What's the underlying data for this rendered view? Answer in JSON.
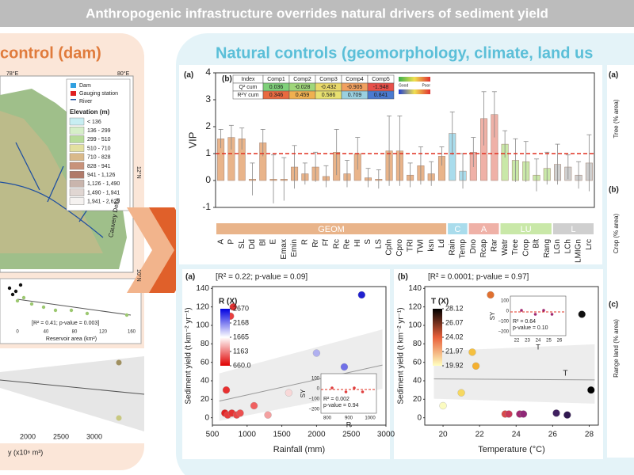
{
  "title": "Anthropogenic infrastructure overrides natural drivers of sediment yield",
  "left_panel": {
    "heading": "control (dam)",
    "map": {
      "legend": [
        "Dam",
        "Gauging station",
        "River"
      ],
      "elevation_title": "Elevation (m)",
      "elevation_classes": [
        "< 136",
        "136 - 299",
        "299 - 510",
        "510 - 710",
        "710 - 828",
        "828 - 941",
        "941 - 1,126",
        "1,126 - 1,490",
        "1,490 - 1,941",
        "1,941 - 2,629"
      ],
      "elevation_colors": [
        "#c8eef2",
        "#d6efc8",
        "#b8dc9a",
        "#e3e0a0",
        "#d9b98a",
        "#c8927a",
        "#b07a6a",
        "#c9b5ad",
        "#e0d6d2",
        "#f5f2f0"
      ],
      "lon_labels": [
        "78°E",
        "80°E"
      ],
      "lat_labels": [
        "12°N",
        "10°N"
      ],
      "place": "Cauvery Delta"
    },
    "inset": {
      "stats": "[R² = 0.41; p-value = 0.003]",
      "xlabel": "Reservoir area (km²)",
      "xticks": [
        "0",
        "40",
        "80",
        "120",
        "160"
      ]
    },
    "bottom": {
      "xticks": [
        "2000",
        "2500",
        "3000"
      ],
      "xlabel": "y (x10⁶ m³)"
    }
  },
  "right_heading": "Natural controls (geomorphology, climate, land us",
  "right_strip": {
    "panels": [
      {
        "label": "(a)",
        "ylabel": "Tree (% area)"
      },
      {
        "label": "(b)",
        "ylabel": "Crop (% area)"
      },
      {
        "label": "(c)",
        "ylabel": "Range land (% area)"
      }
    ]
  },
  "chart_data": [
    {
      "type": "bar",
      "panel_label": "(a)",
      "ylabel": "VIP",
      "categories": [
        "A",
        "P",
        "SL",
        "Dd",
        "Bl",
        "E",
        "Emax",
        "Emin",
        "R",
        "Rr",
        "Ff",
        "Rc",
        "Re",
        "HI",
        "S",
        "LS",
        "Cpln",
        "Cpro",
        "TRI",
        "TWI",
        "ksn",
        "Ld",
        "Rain",
        "Temp",
        "Dno",
        "Rcap",
        "Rar",
        "Watr",
        "Tree",
        "Crop",
        "Blt",
        "Rang",
        "LGn",
        "LCh",
        "LMIGn",
        "Lrc"
      ],
      "values": [
        1.55,
        1.6,
        1.55,
        0.05,
        1.4,
        0.05,
        0.05,
        0.5,
        0.25,
        0.5,
        0.15,
        1.05,
        0.25,
        1.0,
        0.1,
        0.05,
        1.1,
        1.1,
        0.2,
        0.55,
        0.25,
        0.9,
        1.75,
        0.35,
        1.05,
        2.3,
        2.45,
        1.35,
        0.75,
        0.7,
        0.2,
        0.45,
        0.6,
        0.5,
        0.2,
        0.65
      ],
      "errors": [
        0.35,
        0.45,
        0.4,
        0.6,
        0.5,
        0.9,
        0.8,
        0.8,
        0.4,
        0.55,
        0.4,
        0.85,
        0.5,
        0.6,
        0.35,
        0.35,
        1.3,
        1.3,
        0.45,
        0.7,
        0.45,
        0.35,
        0.8,
        0.65,
        0.55,
        1.0,
        0.85,
        0.5,
        0.8,
        0.75,
        0.6,
        0.6,
        0.75,
        0.45,
        0.5,
        1.05
      ],
      "groups": [
        {
          "name": "GEOM",
          "color": "#e9b48a",
          "count": 22
        },
        {
          "name": "C",
          "color": "#a9dcec",
          "count": 2
        },
        {
          "name": "A",
          "color": "#efb1a7",
          "count": 3
        },
        {
          "name": "LU",
          "color": "#c9e8a8",
          "count": 5
        },
        {
          "name": "L",
          "color": "#cfcfcf",
          "count": 4
        }
      ],
      "ylim": [
        -1,
        4
      ],
      "yticks": [
        -1,
        0,
        1,
        2,
        3,
        4
      ],
      "threshold": 1,
      "threshold_color": "#e03020",
      "table": {
        "label": "(b)",
        "header": [
          "Index",
          "Comp1",
          "Comp2",
          "Comp3",
          "Comp4",
          "Comp5"
        ],
        "rows": [
          {
            "label": "Q² cum",
            "values": [
              0.036,
              -0.028,
              -0.432,
              -0.905,
              -1.948
            ],
            "colors": [
              "#7fd07a",
              "#9fd67a",
              "#e8d86a",
              "#f0a060",
              "#e8504a"
            ]
          },
          {
            "label": "R²Y cum",
            "values": [
              0.346,
              0.459,
              0.586,
              0.709,
              0.841
            ],
            "colors": [
              "#e86a40",
              "#f0b050",
              "#e8e070",
              "#9ad0e0",
              "#4a7ad0"
            ]
          }
        ],
        "legend": [
          "Good",
          "Poor"
        ]
      }
    },
    {
      "type": "scatter",
      "panel_label": "(a)",
      "title": "[R² = 0.22; p-value = 0.09]",
      "xlabel": "Rainfall (mm)",
      "ylabel": "Sediment yield (t km⁻² yr⁻¹)",
      "x": [
        700,
        680,
        720,
        760,
        800,
        780,
        850,
        900,
        1100,
        1300,
        1600,
        2000,
        2400,
        2650
      ],
      "values": [
        30,
        5,
        3,
        110,
        120,
        5,
        3,
        5,
        13,
        3,
        27,
        70,
        55,
        133
      ],
      "colors": [
        "#e83030",
        "#e02020",
        "#e83a3a",
        "#e84040",
        "#e03030",
        "#e43434",
        "#e84848",
        "#ec5050",
        "#f06060",
        "#f4a0a0",
        "#f8d8d8",
        "#b0b0f0",
        "#7070e8",
        "#2020d0"
      ],
      "xlim": [
        500,
        3000
      ],
      "xticks": [
        500,
        1000,
        1500,
        2000,
        2500,
        3000
      ],
      "ylim": [
        -8,
        142
      ],
      "yticks": [
        0,
        20,
        40,
        60,
        80,
        100,
        120,
        140
      ],
      "trendline": {
        "x": [
          600,
          2950
        ],
        "y": [
          18,
          57
        ]
      },
      "colorbar": {
        "label": "R (X)",
        "clim": [
          660,
          2670
        ],
        "colors": [
          "#e00000",
          "#ffffff",
          "#0000e0"
        ],
        "ticks": [
          2670,
          2168,
          1665,
          1163,
          {
            "value": 660,
            "label": "660.0"
          }
        ]
      },
      "inset": {
        "ylabel": "SY",
        "xlabel": "R",
        "text": [
          "R² = 0.002",
          "p-value = 0.94"
        ],
        "ticks_y": [
          "100",
          "0",
          "−100",
          "−200"
        ],
        "ticks_x": [
          "800",
          "900",
          "1000"
        ]
      }
    },
    {
      "type": "scatter",
      "panel_label": "(b)",
      "title": "[R² = 0.0001; p-value = 0.97]",
      "xlabel": "Temperature (°C)",
      "ylabel": "Sediment yield (t km⁻² yr⁻¹)",
      "x": [
        20,
        21,
        21.6,
        21.8,
        22.6,
        23.4,
        23.6,
        24.2,
        24.4,
        24.6,
        26.2,
        26.8,
        27.6,
        28.1
      ],
      "values": [
        13,
        27,
        71,
        56,
        133,
        4,
        4,
        4,
        4,
        120,
        5,
        3,
        112,
        30
      ],
      "colors": [
        "#fbfbc0",
        "#f6d860",
        "#f5c040",
        "#f4b030",
        "#e07030",
        "#d84a4a",
        "#c83a5a",
        "#a02870",
        "#902878",
        "#a0287a",
        "#402060",
        "#301850",
        "#101010",
        "#000000"
      ],
      "xlim": [
        19,
        28.5
      ],
      "xticks": [
        20,
        22,
        24,
        26,
        28
      ],
      "ylim": [
        -8,
        142
      ],
      "yticks": [
        0,
        20,
        40,
        60,
        80,
        100,
        120,
        140
      ],
      "trendline": {
        "x": [
          19.5,
          28.3
        ],
        "y": [
          42,
          41
        ]
      },
      "trend_label": "T",
      "colorbar": {
        "label": "T (X)",
        "clim": [
          19.92,
          28.12
        ],
        "colors": [
          "#ffffc0",
          "#e8603a",
          "#000000"
        ],
        "ticks": [
          28.12,
          26.07,
          24.02,
          21.97,
          19.92
        ]
      },
      "inset": {
        "ylabel": "SY",
        "xlabel": "T",
        "text": [
          "R² = 0.64",
          "p-value = 0.10"
        ],
        "ticks_y": [
          "100",
          "0",
          "−100",
          "−200"
        ],
        "ticks_x": [
          "22",
          "23",
          "24",
          "25",
          "26"
        ]
      }
    }
  ]
}
